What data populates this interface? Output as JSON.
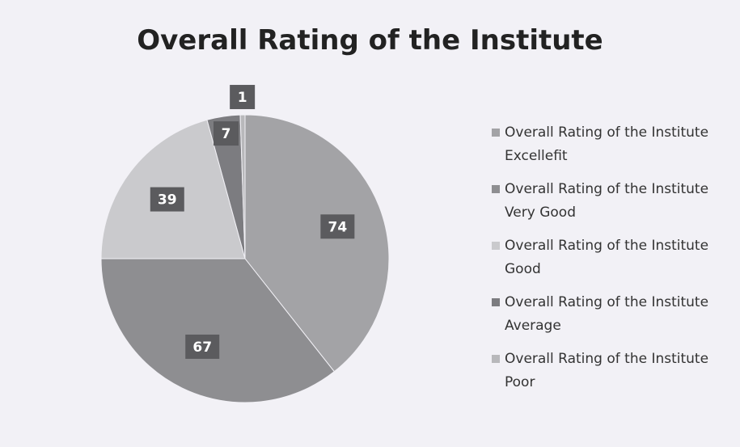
{
  "chart_data": {
    "type": "pie",
    "title": "Overall Rating of the Institute",
    "categories": [
      "Overall Rating of the Institute Excellefit",
      "Overall Rating of the Institute Very Good",
      "Overall Rating of the Institute Good",
      "Overall Rating of the Institute Average",
      "Overall Rating of the Institute Poor"
    ],
    "values": [
      74,
      67,
      39,
      7,
      1
    ],
    "colors": [
      "#a3a3a6",
      "#8e8e91",
      "#cacacd",
      "#7c7c80",
      "#b8b8bb"
    ],
    "legend": "right"
  }
}
